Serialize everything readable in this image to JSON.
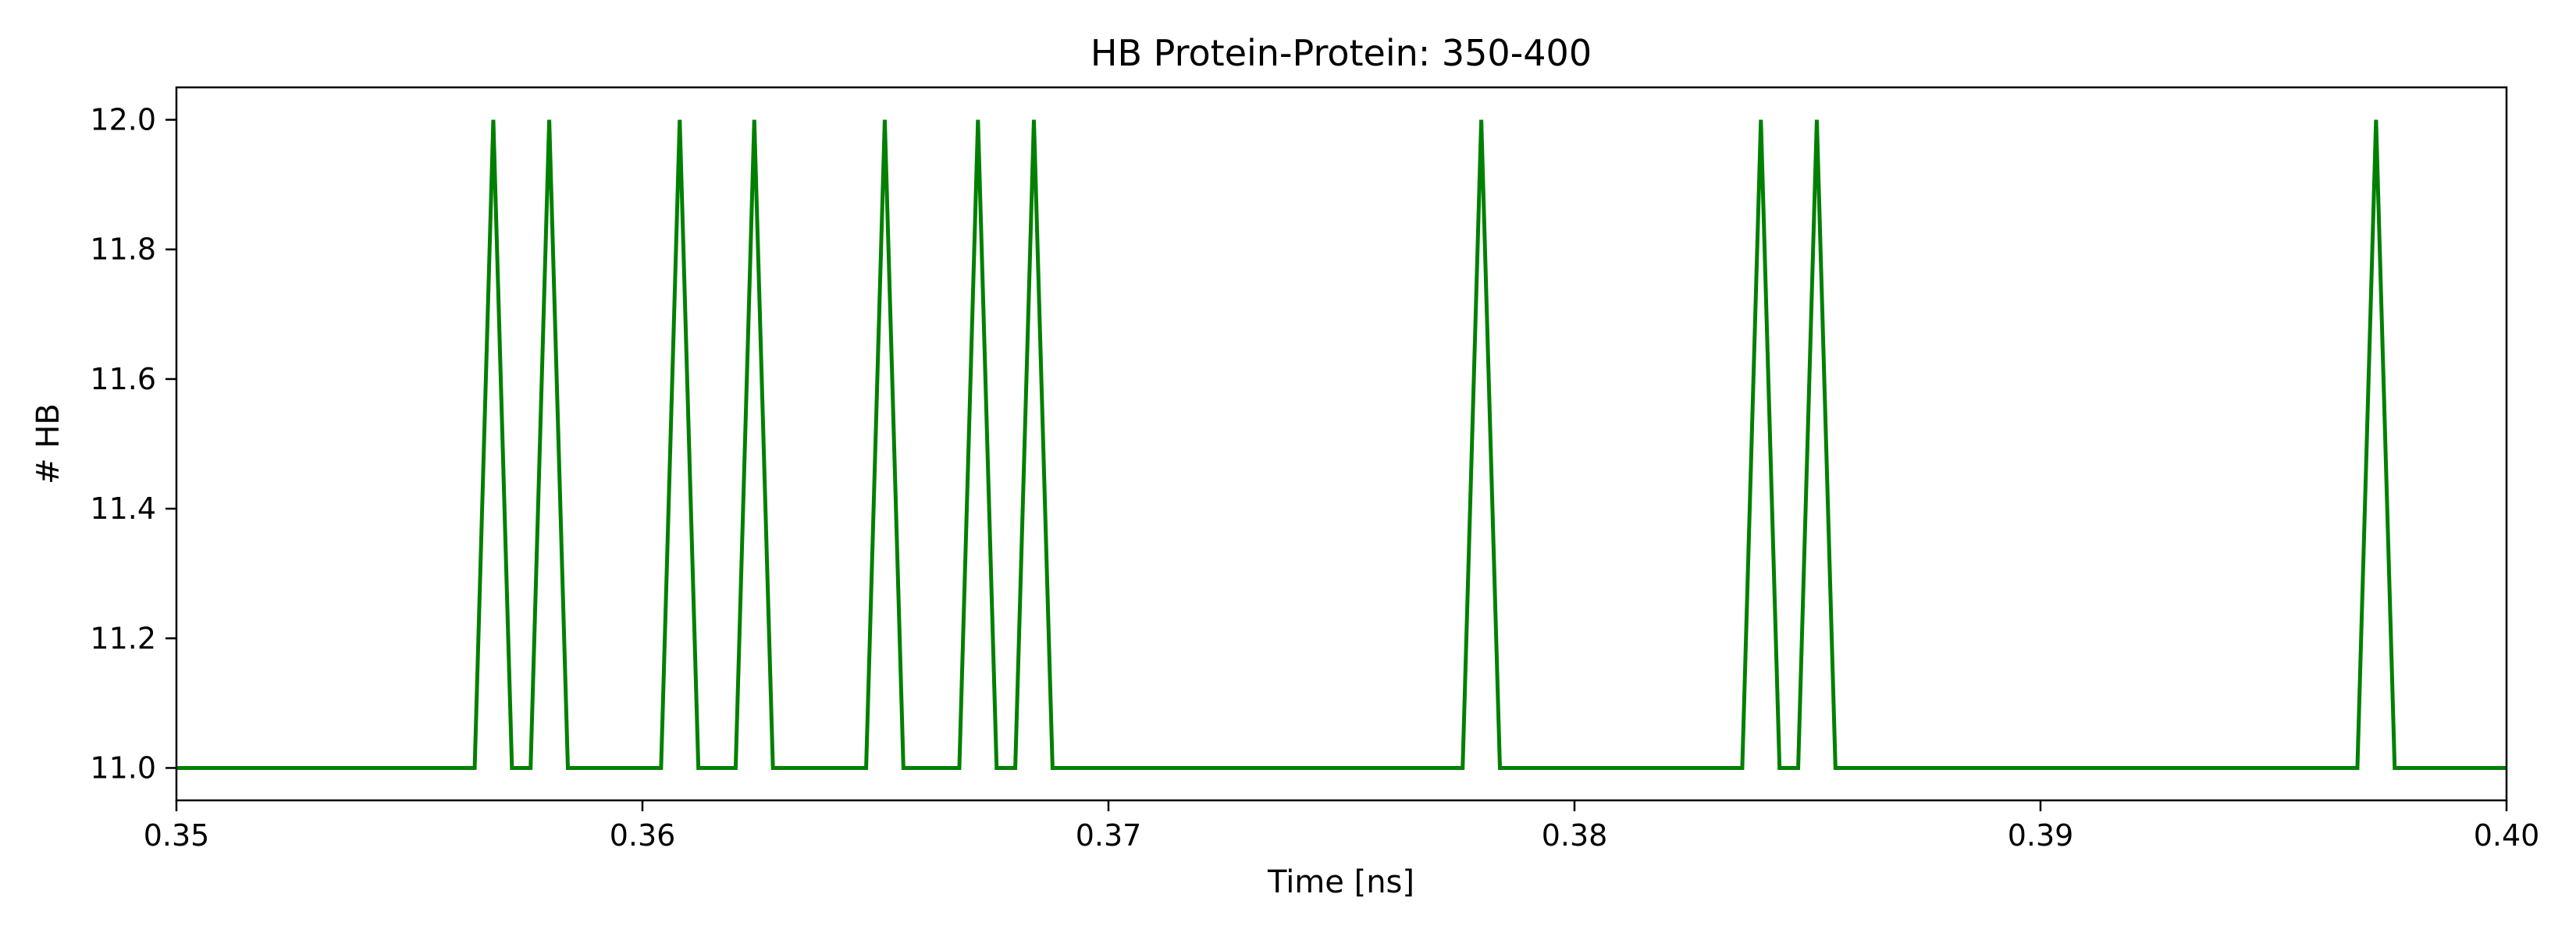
{
  "chart_data": {
    "type": "line",
    "title": "HB Protein-Protein: 350-400",
    "xlabel": "Time [ns]",
    "ylabel": "# HB",
    "xlim": [
      0.35,
      0.4
    ],
    "ylim": [
      10.95,
      12.05
    ],
    "xticks": [
      0.35,
      0.36,
      0.37,
      0.38,
      0.39,
      0.4
    ],
    "xtick_labels": [
      "0.35",
      "0.36",
      "0.37",
      "0.38",
      "0.39",
      "0.40"
    ],
    "yticks": [
      11.0,
      11.2,
      11.4,
      11.6,
      11.8,
      12.0
    ],
    "ytick_labels": [
      "11.0",
      "11.2",
      "11.4",
      "11.6",
      "11.8",
      "12.0"
    ],
    "grid": false,
    "series": [
      {
        "color": "#008000",
        "x": [
          0.35,
          0.3564,
          0.3568,
          0.3572,
          0.3576,
          0.358,
          0.3584,
          0.3604,
          0.3608,
          0.3612,
          0.362,
          0.3624,
          0.3628,
          0.3648,
          0.3652,
          0.3656,
          0.3668,
          0.3672,
          0.3676,
          0.368,
          0.3684,
          0.3688,
          0.3776,
          0.378,
          0.3784,
          0.3836,
          0.384,
          0.3844,
          0.3848,
          0.3852,
          0.3856,
          0.3968,
          0.3972,
          0.3976,
          0.4
        ],
        "y": [
          11,
          11,
          12,
          11,
          11,
          12,
          11,
          11,
          12,
          11,
          11,
          12,
          11,
          11,
          12,
          11,
          11,
          12,
          11,
          11,
          12,
          11,
          11,
          12,
          11,
          11,
          12,
          11,
          11,
          12,
          11,
          11,
          12,
          11,
          11
        ]
      }
    ]
  }
}
